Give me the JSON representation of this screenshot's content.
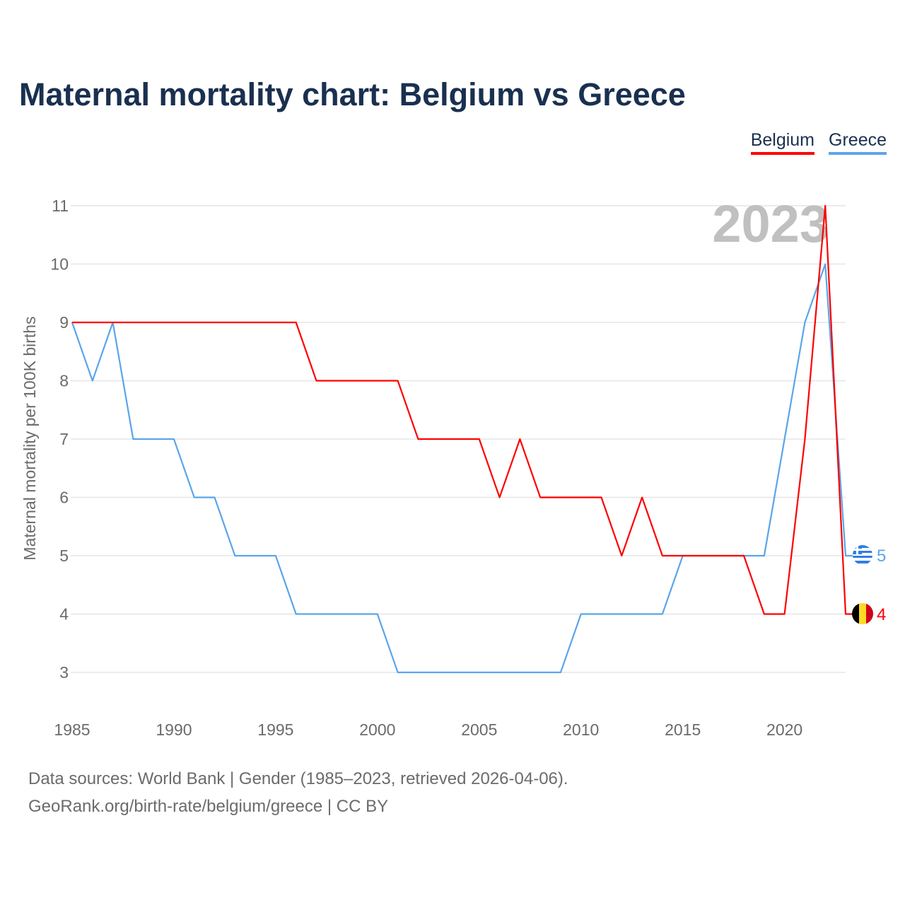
{
  "title": "Maternal mortality chart: Belgium vs Greece",
  "footer": {
    "line1": "Data sources: World Bank | Gender (1985–2023, retrieved 2026-04-06).",
    "line2": "GeoRank.org/birth-rate/belgium/greece | CC BY"
  },
  "chart_data": {
    "type": "line",
    "title": "Maternal mortality chart: Belgium vs Greece",
    "ylabel": "Maternal mortality per 100K births",
    "xlabel": "",
    "year_label": "2023",
    "ylim": [
      3,
      11
    ],
    "xlim": [
      1985,
      2023
    ],
    "yticks": [
      "3",
      "4",
      "5",
      "6",
      "7",
      "8",
      "9",
      "10",
      "11"
    ],
    "xticks": [
      "1985",
      "1990",
      "1995",
      "2000",
      "2005",
      "2010",
      "2015",
      "2020"
    ],
    "legend_position": "top-right",
    "x": [
      1985,
      1986,
      1987,
      1988,
      1989,
      1990,
      1991,
      1992,
      1993,
      1994,
      1995,
      1996,
      1997,
      1998,
      1999,
      2000,
      2001,
      2002,
      2003,
      2004,
      2005,
      2006,
      2007,
      2008,
      2009,
      2010,
      2011,
      2012,
      2013,
      2014,
      2015,
      2016,
      2017,
      2018,
      2019,
      2020,
      2021,
      2022,
      2023
    ],
    "series": [
      {
        "name": "Belgium",
        "color": "#ff0000",
        "end_label": "4",
        "values": [
          9,
          9,
          9,
          9,
          9,
          9,
          9,
          9,
          9,
          9,
          9,
          9,
          8,
          8,
          8,
          8,
          8,
          7,
          7,
          7,
          7,
          6,
          7,
          6,
          6,
          6,
          6,
          5,
          6,
          5,
          5,
          5,
          5,
          5,
          4,
          4,
          7,
          11,
          4
        ]
      },
      {
        "name": "Greece",
        "color": "#5aa5ea",
        "end_label": "5",
        "values": [
          9,
          8,
          9,
          7,
          7,
          7,
          6,
          6,
          5,
          5,
          5,
          4,
          4,
          4,
          4,
          4,
          3,
          3,
          3,
          3,
          3,
          3,
          3,
          3,
          3,
          4,
          4,
          4,
          4,
          4,
          5,
          5,
          5,
          5,
          5,
          7,
          9,
          10,
          5
        ]
      }
    ]
  }
}
